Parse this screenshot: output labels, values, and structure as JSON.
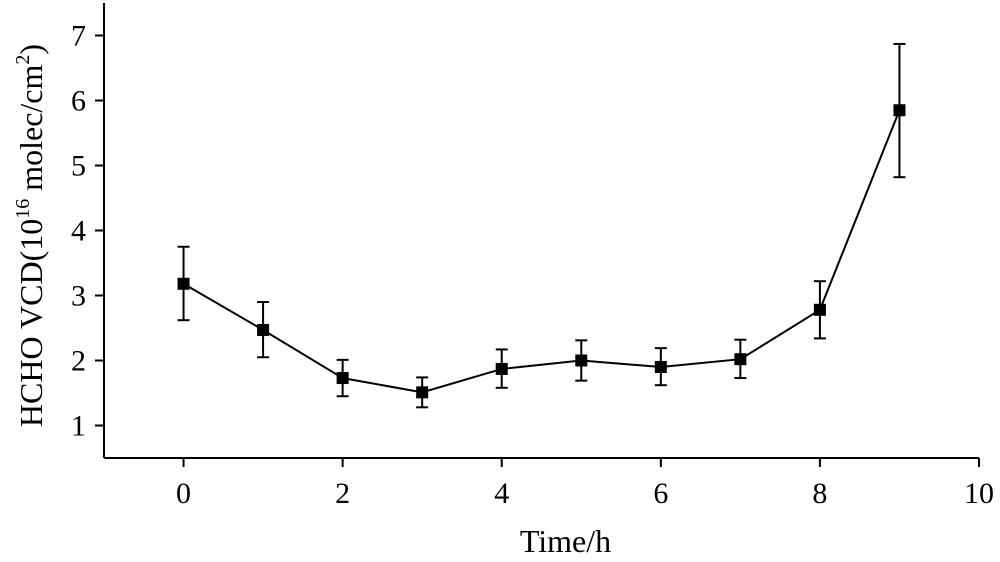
{
  "chart_data": {
    "type": "line",
    "title": "",
    "xlabel": "Time/h",
    "ylabel": {
      "prefix": "HCHO VCD(10",
      "exp1": "16",
      "middle": " molec/cm",
      "exp2": "2",
      "suffix": ")"
    },
    "xlim": [
      -1,
      10
    ],
    "ylim": [
      0.5,
      7.5
    ],
    "xticks": [
      0,
      2,
      4,
      6,
      8,
      10
    ],
    "yticks": [
      1,
      2,
      3,
      4,
      5,
      6,
      7
    ],
    "grid": false,
    "marker": "square",
    "color": "#000000",
    "series": [
      {
        "x": [
          0,
          1,
          2,
          3,
          4,
          5,
          6,
          7,
          8,
          9
        ],
        "y": [
          3.18,
          2.47,
          1.73,
          1.51,
          1.87,
          2.0,
          1.9,
          2.02,
          2.78,
          5.85
        ],
        "err_upper": [
          3.75,
          2.9,
          2.01,
          1.74,
          2.17,
          2.31,
          2.19,
          2.32,
          3.22,
          6.87
        ],
        "err_lower": [
          2.62,
          2.05,
          1.45,
          1.28,
          1.58,
          1.69,
          1.62,
          1.73,
          2.34,
          4.82
        ]
      }
    ]
  }
}
